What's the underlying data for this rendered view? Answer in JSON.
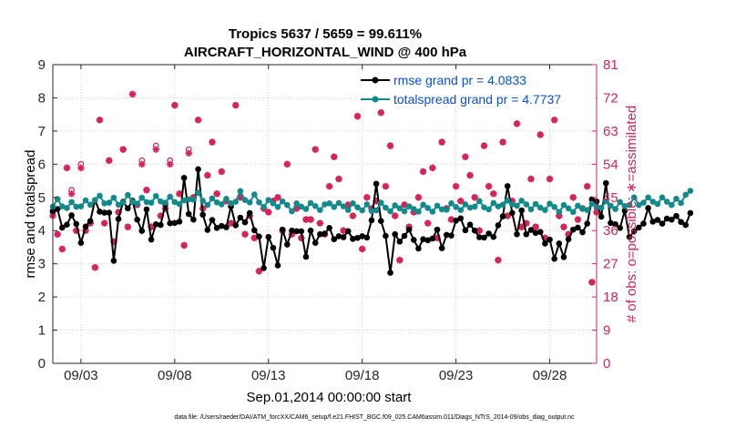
{
  "chart_data": {
    "type": "line",
    "title": "Tropics 5637 / 5659 = 99.611%",
    "subtitle": "AIRCRAFT_HORIZONTAL_WIND @ 400 hPa",
    "xlabel": "Sep.01,2014 00:00:00 start",
    "ylabel_left": "rmse and totalspread",
    "ylabel_right": "# of obs: o=possible; ∗=assimilated",
    "footer": "data file: /Users/raeder/DAI/ATM_forcXX/CAM6_setup/f.e21.FHIST_BGC.f09_025.CAM6assim.011/Diags_NTrS_2014-09/obs_diag_output.nc",
    "xlim": [
      1.5,
      30.5
    ],
    "ylim_left": [
      0,
      9
    ],
    "ylim_right": [
      0,
      81
    ],
    "x_ticks": [
      3,
      8,
      13,
      18,
      23,
      28
    ],
    "x_tick_labels": [
      "09/03",
      "09/08",
      "09/13",
      "09/18",
      "09/23",
      "09/28"
    ],
    "y_ticks_left": [
      0,
      1,
      2,
      3,
      4,
      5,
      6,
      7,
      8,
      9
    ],
    "y_ticks_right": [
      0,
      9,
      18,
      27,
      36,
      45,
      54,
      63,
      72,
      81
    ],
    "legend": [
      {
        "name": "rmse grand pr = 4.0833",
        "color": "#000000"
      },
      {
        "name": "totalspread grand pr = 4.7737",
        "color": "#138a8a"
      }
    ],
    "series": [
      {
        "name": "rmse",
        "color": "#000000",
        "axis": "left",
        "x_start": 1.5,
        "x_step": 0.25,
        "values": [
          4.59,
          4.65,
          4.09,
          4.18,
          4.46,
          4.2,
          3.63,
          4.12,
          4.29,
          4.92,
          4.57,
          4.54,
          4.54,
          3.09,
          4.35,
          4.87,
          4.67,
          4.9,
          4.33,
          3.99,
          4.64,
          3.73,
          4.19,
          4.17,
          4.79,
          4.22,
          4.23,
          4.27,
          5.59,
          4.5,
          4.33,
          5.85,
          4.48,
          4.02,
          4.32,
          4.08,
          4.14,
          4.1,
          4.73,
          4.16,
          4.39,
          4.25,
          4.53,
          4.01,
          3.82,
          2.87,
          3.81,
          3.48,
          2.95,
          4.03,
          3.58,
          4.0,
          3.98,
          3.98,
          3.21,
          4.0,
          3.63,
          3.89,
          3.91,
          4.08,
          3.74,
          3.83,
          3.8,
          3.98,
          3.75,
          3.78,
          3.83,
          3.79,
          4.31,
          5.41,
          4.29,
          3.84,
          2.73,
          3.89,
          3.67,
          3.84,
          4.03,
          3.72,
          3.46,
          3.74,
          3.71,
          3.76,
          4.03,
          3.47,
          3.87,
          3.85,
          4.3,
          4.37,
          4.01,
          4.18,
          4.0,
          3.8,
          3.79,
          3.91,
          3.81,
          4.16,
          4.43,
          5.34,
          4.53,
          3.89,
          4.61,
          3.89,
          4.02,
          3.93,
          3.96,
          3.61,
          3.73,
          3.15,
          3.61,
          3.2,
          3.74,
          4.03,
          4.09,
          3.95,
          4.21,
          4.94,
          4.88,
          4.42,
          5.43,
          4.23,
          4.19,
          4.08,
          4.6,
          3.81,
          3.98,
          4.09,
          4.21,
          4.68,
          4.27,
          4.32,
          4.21,
          4.36,
          4.33,
          4.44,
          4.26,
          4.17,
          4.53
        ]
      },
      {
        "name": "totalspread",
        "color": "#138a8a",
        "axis": "left",
        "x_start": 1.5,
        "x_step": 0.25,
        "values": [
          4.72,
          4.95,
          4.73,
          4.68,
          4.86,
          4.72,
          4.73,
          4.91,
          4.78,
          4.92,
          5.05,
          4.82,
          4.84,
          4.99,
          4.78,
          4.85,
          5.07,
          4.87,
          4.81,
          4.99,
          4.86,
          4.84,
          5.04,
          4.88,
          4.84,
          5.02,
          4.86,
          4.8,
          4.91,
          4.94,
          4.93,
          5.14,
          4.9,
          4.77,
          4.97,
          4.85,
          4.79,
          4.96,
          4.82,
          4.87,
          5.19,
          4.92,
          4.85,
          5.09,
          4.85,
          4.71,
          4.92,
          4.82,
          4.71,
          4.88,
          4.77,
          4.58,
          4.82,
          4.72,
          4.65,
          4.83,
          4.74,
          4.62,
          4.79,
          4.82,
          4.71,
          4.83,
          4.73,
          4.62,
          4.82,
          4.7,
          4.61,
          4.79,
          4.59,
          4.61,
          4.84,
          4.69,
          4.58,
          4.76,
          4.67,
          4.58,
          4.73,
          4.65,
          4.57,
          4.78,
          4.68,
          4.57,
          4.75,
          4.64,
          4.63,
          4.82,
          4.71,
          4.62,
          4.79,
          4.69,
          4.72,
          4.89,
          4.7,
          4.64,
          4.83,
          4.73,
          4.78,
          4.9,
          4.79,
          4.75,
          4.9,
          4.79,
          4.64,
          4.8,
          4.69,
          4.62,
          4.81,
          4.71,
          4.56,
          4.77,
          4.67,
          4.56,
          4.75,
          4.66,
          4.62,
          4.81,
          4.7,
          4.69,
          4.88,
          4.75,
          4.65,
          4.86,
          4.74,
          4.77,
          5.0,
          4.77,
          4.84,
          5.0,
          4.87,
          4.8,
          5.0,
          4.87,
          4.77,
          4.96,
          4.83,
          5.08,
          5.2
        ]
      }
    ],
    "obs_possible": {
      "color": "#d6245a",
      "axis": "right",
      "marker": "o",
      "points": [
        [
          1.5,
          41
        ],
        [
          1.75,
          35
        ],
        [
          2.0,
          31
        ],
        [
          2.25,
          53
        ],
        [
          2.5,
          47
        ],
        [
          2.75,
          36
        ],
        [
          3.0,
          54
        ],
        [
          3.25,
          36
        ],
        [
          3.5,
          38
        ],
        [
          3.75,
          26
        ],
        [
          4.0,
          66
        ],
        [
          4.25,
          38
        ],
        [
          4.5,
          55
        ],
        [
          4.75,
          33
        ],
        [
          5.0,
          41
        ],
        [
          5.25,
          58
        ],
        [
          5.5,
          37
        ],
        [
          5.75,
          73
        ],
        [
          6.0,
          43
        ],
        [
          6.25,
          55
        ],
        [
          6.5,
          47
        ],
        [
          6.75,
          37
        ],
        [
          7.0,
          59
        ],
        [
          7.25,
          40
        ],
        [
          7.5,
          42
        ],
        [
          7.75,
          55
        ],
        [
          8.0,
          70
        ],
        [
          8.25,
          46
        ],
        [
          8.5,
          32
        ],
        [
          8.75,
          58
        ],
        [
          9.0,
          45
        ],
        [
          9.25,
          66
        ],
        [
          9.5,
          42
        ],
        [
          9.75,
          51
        ],
        [
          10.0,
          60
        ],
        [
          10.25,
          46
        ],
        [
          10.5,
          52
        ],
        [
          10.75,
          44
        ],
        [
          11.0,
          38
        ],
        [
          11.25,
          70
        ],
        [
          11.5,
          45
        ],
        [
          11.75,
          35
        ],
        [
          12.0,
          40
        ],
        [
          12.25,
          34
        ],
        [
          12.5,
          25
        ],
        [
          12.75,
          42
        ],
        [
          13.0,
          41
        ],
        [
          13.25,
          44
        ],
        [
          13.5,
          45
        ],
        [
          13.75,
          36
        ],
        [
          14.0,
          54
        ],
        [
          14.25,
          35
        ],
        [
          14.5,
          42
        ],
        [
          14.75,
          34
        ],
        [
          15.0,
          39
        ],
        [
          15.25,
          39
        ],
        [
          15.5,
          58
        ],
        [
          15.75,
          38
        ],
        [
          16.0,
          35
        ],
        [
          16.25,
          48
        ],
        [
          16.5,
          56
        ],
        [
          16.75,
          50
        ],
        [
          17.0,
          36
        ],
        [
          17.25,
          43
        ],
        [
          17.5,
          40
        ],
        [
          17.75,
          67
        ],
        [
          18.0,
          31
        ],
        [
          18.25,
          45
        ],
        [
          18.5,
          42
        ],
        [
          18.75,
          44
        ],
        [
          19.0,
          68
        ],
        [
          19.25,
          48
        ],
        [
          19.5,
          59
        ],
        [
          19.75,
          40
        ],
        [
          20.0,
          28
        ],
        [
          20.25,
          43
        ],
        [
          20.5,
          37
        ],
        [
          20.75,
          41
        ],
        [
          21.0,
          45
        ],
        [
          21.25,
          52
        ],
        [
          21.5,
          38
        ],
        [
          21.75,
          53
        ],
        [
          22.0,
          34
        ],
        [
          22.25,
          60
        ],
        [
          22.5,
          42
        ],
        [
          22.75,
          39
        ],
        [
          23.0,
          48
        ],
        [
          23.25,
          44
        ],
        [
          23.5,
          56
        ],
        [
          23.75,
          51
        ],
        [
          24.0,
          45
        ],
        [
          24.25,
          36
        ],
        [
          24.5,
          59
        ],
        [
          24.75,
          48
        ],
        [
          25.0,
          46
        ],
        [
          25.25,
          28
        ],
        [
          25.5,
          60
        ],
        [
          25.75,
          40
        ],
        [
          26.0,
          44
        ],
        [
          26.25,
          65
        ],
        [
          26.5,
          37
        ],
        [
          26.75,
          38
        ],
        [
          27.0,
          50
        ],
        [
          27.25,
          37
        ],
        [
          27.5,
          62
        ],
        [
          27.75,
          34
        ],
        [
          28.0,
          50
        ],
        [
          28.25,
          66
        ],
        [
          28.5,
          40
        ],
        [
          28.75,
          37
        ],
        [
          29.0,
          35
        ],
        [
          29.25,
          45
        ],
        [
          29.5,
          39
        ],
        [
          29.75,
          42
        ],
        [
          30.0,
          48
        ],
        [
          30.25,
          22
        ],
        [
          30.5,
          41
        ]
      ]
    },
    "obs_assimilated": {
      "color": "#d6245a",
      "axis": "right",
      "marker": "*",
      "points": [
        [
          1.5,
          40
        ],
        [
          1.75,
          35
        ],
        [
          2.0,
          31
        ],
        [
          2.25,
          53
        ],
        [
          2.5,
          46
        ],
        [
          2.75,
          36
        ],
        [
          3.0,
          53
        ],
        [
          3.25,
          36
        ],
        [
          3.5,
          38
        ],
        [
          3.75,
          26
        ],
        [
          4.0,
          66
        ],
        [
          4.25,
          38
        ],
        [
          4.5,
          55
        ],
        [
          4.75,
          33
        ],
        [
          5.0,
          41
        ],
        [
          5.25,
          58
        ],
        [
          5.5,
          37
        ],
        [
          5.75,
          73
        ],
        [
          6.0,
          43
        ],
        [
          6.25,
          54
        ],
        [
          6.5,
          47
        ],
        [
          6.75,
          37
        ],
        [
          7.0,
          58
        ],
        [
          7.25,
          40
        ],
        [
          7.5,
          42
        ],
        [
          7.75,
          54
        ],
        [
          8.0,
          70
        ],
        [
          8.25,
          46
        ],
        [
          8.5,
          32
        ],
        [
          8.75,
          57
        ],
        [
          9.0,
          45
        ],
        [
          9.25,
          66
        ],
        [
          9.5,
          42
        ],
        [
          9.75,
          51
        ],
        [
          10.0,
          60
        ],
        [
          10.25,
          46
        ],
        [
          10.5,
          52
        ],
        [
          10.75,
          44
        ],
        [
          11.0,
          38
        ],
        [
          11.25,
          70
        ],
        [
          11.5,
          45
        ],
        [
          11.75,
          35
        ],
        [
          12.0,
          40
        ],
        [
          12.25,
          34
        ],
        [
          12.5,
          25
        ],
        [
          12.75,
          42
        ],
        [
          13.0,
          41
        ],
        [
          13.25,
          44
        ],
        [
          13.5,
          45
        ],
        [
          13.75,
          36
        ],
        [
          14.0,
          54
        ],
        [
          14.25,
          35
        ],
        [
          14.5,
          42
        ],
        [
          14.75,
          34
        ],
        [
          15.0,
          39
        ],
        [
          15.25,
          39
        ],
        [
          15.5,
          58
        ],
        [
          15.75,
          38
        ],
        [
          16.0,
          35
        ],
        [
          16.25,
          48
        ],
        [
          16.5,
          56
        ],
        [
          16.75,
          50
        ],
        [
          17.0,
          36
        ],
        [
          17.25,
          43
        ],
        [
          17.5,
          40
        ],
        [
          17.75,
          67
        ],
        [
          18.0,
          31
        ],
        [
          18.25,
          45
        ],
        [
          18.5,
          42
        ],
        [
          18.75,
          44
        ],
        [
          19.0,
          68
        ],
        [
          19.25,
          48
        ],
        [
          19.5,
          59
        ],
        [
          19.75,
          40
        ],
        [
          20.0,
          28
        ],
        [
          20.25,
          43
        ],
        [
          20.5,
          37
        ],
        [
          20.75,
          41
        ],
        [
          21.0,
          45
        ],
        [
          21.25,
          52
        ],
        [
          21.5,
          38
        ],
        [
          21.75,
          53
        ],
        [
          22.0,
          34
        ],
        [
          22.25,
          60
        ],
        [
          22.5,
          42
        ],
        [
          22.75,
          39
        ],
        [
          23.0,
          48
        ],
        [
          23.25,
          44
        ],
        [
          23.5,
          56
        ],
        [
          23.75,
          51
        ],
        [
          24.0,
          45
        ],
        [
          24.25,
          36
        ],
        [
          24.5,
          59
        ],
        [
          24.75,
          48
        ],
        [
          25.0,
          46
        ],
        [
          25.25,
          28
        ],
        [
          25.5,
          60
        ],
        [
          25.75,
          40
        ],
        [
          26.0,
          44
        ],
        [
          26.25,
          65
        ],
        [
          26.5,
          37
        ],
        [
          26.75,
          38
        ],
        [
          27.0,
          50
        ],
        [
          27.25,
          37
        ],
        [
          27.5,
          62
        ],
        [
          27.75,
          34
        ],
        [
          28.0,
          50
        ],
        [
          28.25,
          66
        ],
        [
          28.5,
          40
        ],
        [
          28.75,
          37
        ],
        [
          29.0,
          35
        ],
        [
          29.25,
          45
        ],
        [
          29.5,
          39
        ],
        [
          29.75,
          42
        ],
        [
          30.0,
          48
        ],
        [
          30.25,
          22
        ],
        [
          30.5,
          41
        ]
      ]
    }
  }
}
